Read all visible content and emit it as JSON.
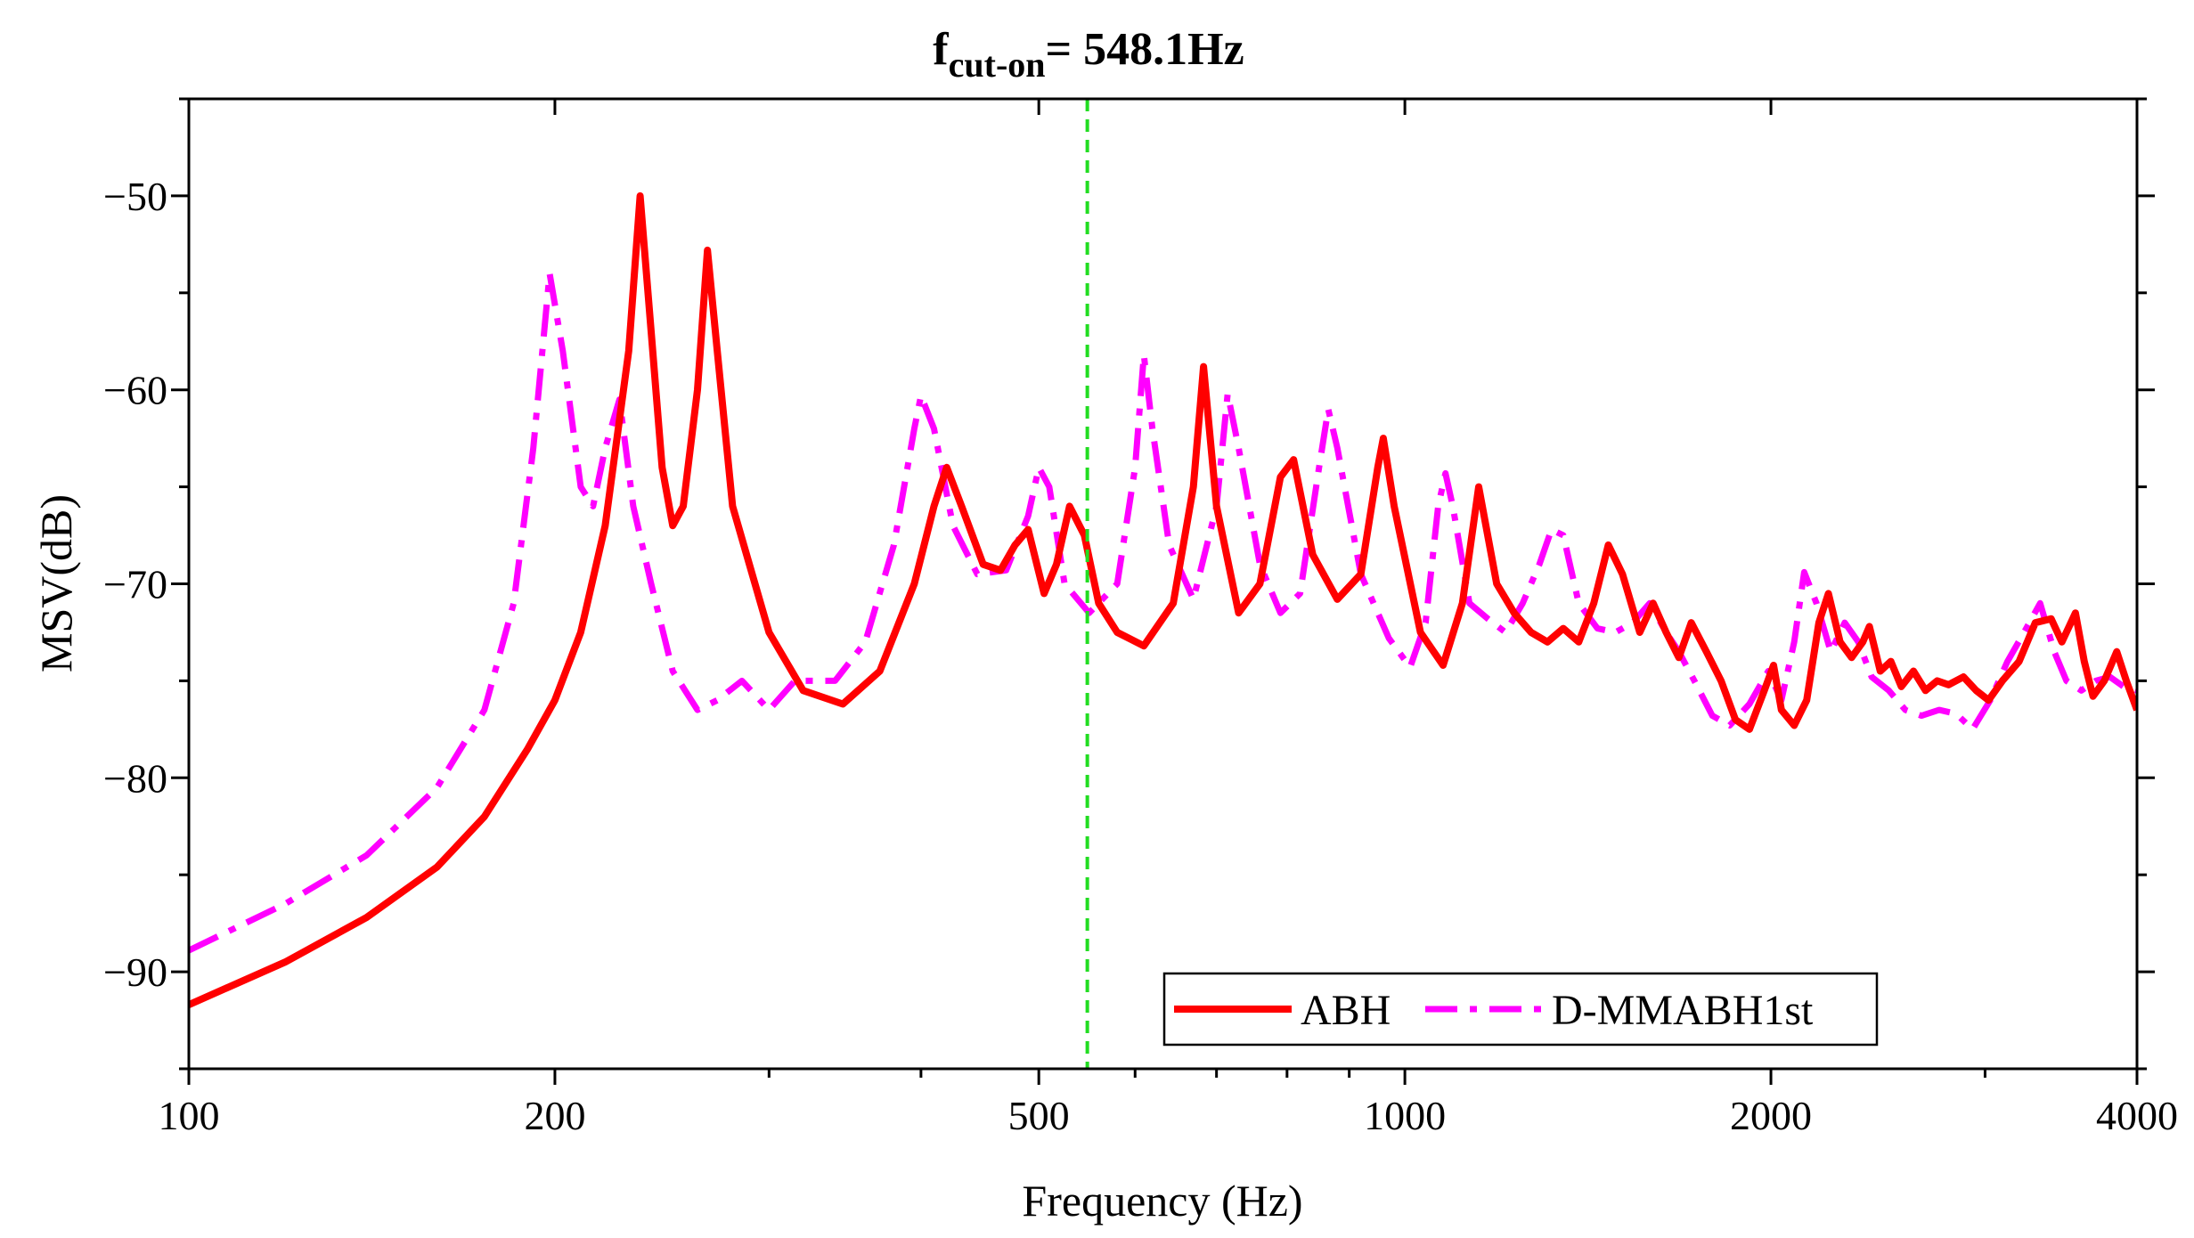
{
  "chart_data": {
    "type": "line",
    "title_main": "f",
    "title_subscript": "cut-on",
    "title_rest": "= 548.1Hz",
    "xlabel": "Frequency (Hz)",
    "ylabel": "MSV(dB)",
    "xscale": "log",
    "xlim": [
      100,
      4000
    ],
    "ylim": [
      -95,
      -45
    ],
    "x_ticks": [
      100,
      200,
      500,
      1000,
      2000,
      4000
    ],
    "x_tick_labels": [
      "100",
      "200",
      "500",
      "1000",
      "2000",
      "4000"
    ],
    "y_ticks": [
      -90,
      -80,
      -70,
      -60,
      -50
    ],
    "y_tick_labels": [
      "−90",
      "−80",
      "−70",
      "−60",
      "−50"
    ],
    "cut_on_frequency": 548.1,
    "legend_position": "bottom-right",
    "series": [
      {
        "name": "ABH",
        "color": "#ff0000",
        "style": "solid",
        "points": [
          [
            100,
            -91.7
          ],
          [
            120,
            -89.5
          ],
          [
            140,
            -87.2
          ],
          [
            160,
            -84.6
          ],
          [
            175,
            -82
          ],
          [
            190,
            -78.5
          ],
          [
            200,
            -76
          ],
          [
            210,
            -72.5
          ],
          [
            220,
            -67
          ],
          [
            230,
            -58
          ],
          [
            235,
            -50
          ],
          [
            240,
            -57
          ],
          [
            245,
            -64
          ],
          [
            250,
            -67
          ],
          [
            255,
            -66
          ],
          [
            262,
            -60
          ],
          [
            267,
            -52.8
          ],
          [
            272,
            -58
          ],
          [
            280,
            -66
          ],
          [
            300,
            -72.5
          ],
          [
            320,
            -75.5
          ],
          [
            345,
            -76.2
          ],
          [
            370,
            -74.5
          ],
          [
            395,
            -70
          ],
          [
            410,
            -66
          ],
          [
            420,
            -64
          ],
          [
            432,
            -66
          ],
          [
            450,
            -69
          ],
          [
            465,
            -69.3
          ],
          [
            478,
            -68
          ],
          [
            490,
            -67.2
          ],
          [
            505,
            -70.5
          ],
          [
            517,
            -69
          ],
          [
            530,
            -66
          ],
          [
            545,
            -67.5
          ],
          [
            560,
            -71
          ],
          [
            580,
            -72.5
          ],
          [
            610,
            -73.2
          ],
          [
            645,
            -71
          ],
          [
            670,
            -65
          ],
          [
            683,
            -58.8
          ],
          [
            700,
            -66
          ],
          [
            730,
            -71.5
          ],
          [
            760,
            -70
          ],
          [
            790,
            -64.5
          ],
          [
            810,
            -63.6
          ],
          [
            840,
            -68.5
          ],
          [
            880,
            -70.8
          ],
          [
            920,
            -69.5
          ],
          [
            950,
            -64
          ],
          [
            960,
            -62.5
          ],
          [
            980,
            -66
          ],
          [
            1030,
            -72.5
          ],
          [
            1075,
            -74.2
          ],
          [
            1115,
            -71
          ],
          [
            1150,
            -65
          ],
          [
            1190,
            -70
          ],
          [
            1230,
            -71.5
          ],
          [
            1270,
            -72.5
          ],
          [
            1310,
            -73
          ],
          [
            1350,
            -72.3
          ],
          [
            1390,
            -73
          ],
          [
            1430,
            -71
          ],
          [
            1470,
            -68
          ],
          [
            1510,
            -69.5
          ],
          [
            1560,
            -72.5
          ],
          [
            1600,
            -71
          ],
          [
            1640,
            -72.5
          ],
          [
            1680,
            -73.8
          ],
          [
            1720,
            -72
          ],
          [
            1770,
            -73.5
          ],
          [
            1820,
            -75
          ],
          [
            1870,
            -77
          ],
          [
            1920,
            -77.5
          ],
          [
            1975,
            -75.5
          ],
          [
            2010,
            -74.2
          ],
          [
            2040,
            -76.5
          ],
          [
            2090,
            -77.3
          ],
          [
            2140,
            -76
          ],
          [
            2190,
            -72
          ],
          [
            2230,
            -70.5
          ],
          [
            2280,
            -73
          ],
          [
            2330,
            -73.8
          ],
          [
            2380,
            -73
          ],
          [
            2410,
            -72.2
          ],
          [
            2460,
            -74.5
          ],
          [
            2510,
            -74
          ],
          [
            2560,
            -75.3
          ],
          [
            2620,
            -74.5
          ],
          [
            2680,
            -75.5
          ],
          [
            2740,
            -75
          ],
          [
            2800,
            -75.2
          ],
          [
            2880,
            -74.8
          ],
          [
            2950,
            -75.5
          ],
          [
            3020,
            -76
          ],
          [
            3100,
            -75
          ],
          [
            3200,
            -74
          ],
          [
            3300,
            -72
          ],
          [
            3400,
            -71.8
          ],
          [
            3470,
            -73
          ],
          [
            3560,
            -71.5
          ],
          [
            3620,
            -74
          ],
          [
            3680,
            -75.8
          ],
          [
            3760,
            -75
          ],
          [
            3850,
            -73.5
          ],
          [
            3920,
            -75
          ],
          [
            4000,
            -76.5
          ]
        ]
      },
      {
        "name": "D-MMABH1st",
        "color": "#ff00ff",
        "style": "dashdot",
        "points": [
          [
            100,
            -88.9
          ],
          [
            120,
            -86.5
          ],
          [
            140,
            -84
          ],
          [
            160,
            -80.5
          ],
          [
            175,
            -76.5
          ],
          [
            185,
            -71
          ],
          [
            192,
            -63
          ],
          [
            198,
            -54
          ],
          [
            203,
            -58
          ],
          [
            210,
            -65
          ],
          [
            215,
            -66
          ],
          [
            220,
            -63
          ],
          [
            226,
            -60.5
          ],
          [
            232,
            -66
          ],
          [
            240,
            -70
          ],
          [
            250,
            -74.5
          ],
          [
            262,
            -76.5
          ],
          [
            272,
            -76
          ],
          [
            285,
            -75
          ],
          [
            300,
            -76.5
          ],
          [
            315,
            -75
          ],
          [
            340,
            -75
          ],
          [
            360,
            -73
          ],
          [
            380,
            -68
          ],
          [
            395,
            -62
          ],
          [
            400,
            -60.3
          ],
          [
            410,
            -62
          ],
          [
            425,
            -67
          ],
          [
            445,
            -69.5
          ],
          [
            470,
            -69.3
          ],
          [
            490,
            -66.5
          ],
          [
            500,
            -64
          ],
          [
            510,
            -65
          ],
          [
            525,
            -70
          ],
          [
            550,
            -71.5
          ],
          [
            580,
            -70
          ],
          [
            600,
            -64
          ],
          [
            610,
            -58.2
          ],
          [
            620,
            -62
          ],
          [
            640,
            -68
          ],
          [
            670,
            -70.8
          ],
          [
            700,
            -66
          ],
          [
            715,
            -60.2
          ],
          [
            730,
            -63
          ],
          [
            760,
            -69
          ],
          [
            790,
            -71.5
          ],
          [
            820,
            -70.5
          ],
          [
            850,
            -64
          ],
          [
            865,
            -61
          ],
          [
            880,
            -63
          ],
          [
            920,
            -69.5
          ],
          [
            970,
            -72.8
          ],
          [
            1010,
            -74.3
          ],
          [
            1040,
            -72
          ],
          [
            1065,
            -66
          ],
          [
            1080,
            -64.3
          ],
          [
            1095,
            -66
          ],
          [
            1130,
            -71
          ],
          [
            1170,
            -71.8
          ],
          [
            1210,
            -72.5
          ],
          [
            1250,
            -71
          ],
          [
            1290,
            -69
          ],
          [
            1320,
            -67.2
          ],
          [
            1350,
            -67.5
          ],
          [
            1390,
            -71
          ],
          [
            1440,
            -72.3
          ],
          [
            1490,
            -72.5
          ],
          [
            1540,
            -72
          ],
          [
            1590,
            -71
          ],
          [
            1640,
            -72.5
          ],
          [
            1680,
            -73.5
          ],
          [
            1730,
            -75
          ],
          [
            1790,
            -76.8
          ],
          [
            1850,
            -77.3
          ],
          [
            1920,
            -76.2
          ],
          [
            1990,
            -74.5
          ],
          [
            2040,
            -76
          ],
          [
            2090,
            -73
          ],
          [
            2130,
            -69.4
          ],
          [
            2180,
            -71
          ],
          [
            2240,
            -73.5
          ],
          [
            2300,
            -72
          ],
          [
            2360,
            -73
          ],
          [
            2420,
            -74.8
          ],
          [
            2500,
            -75.5
          ],
          [
            2580,
            -76.5
          ],
          [
            2660,
            -76.8
          ],
          [
            2750,
            -76.5
          ],
          [
            2840,
            -76.7
          ],
          [
            2930,
            -77.5
          ],
          [
            3030,
            -76
          ],
          [
            3130,
            -74
          ],
          [
            3230,
            -72.5
          ],
          [
            3330,
            -71
          ],
          [
            3420,
            -73.5
          ],
          [
            3500,
            -75
          ],
          [
            3600,
            -75.5
          ],
          [
            3700,
            -75
          ],
          [
            3800,
            -74.8
          ],
          [
            3900,
            -75.3
          ],
          [
            4000,
            -75.5
          ]
        ]
      }
    ]
  }
}
